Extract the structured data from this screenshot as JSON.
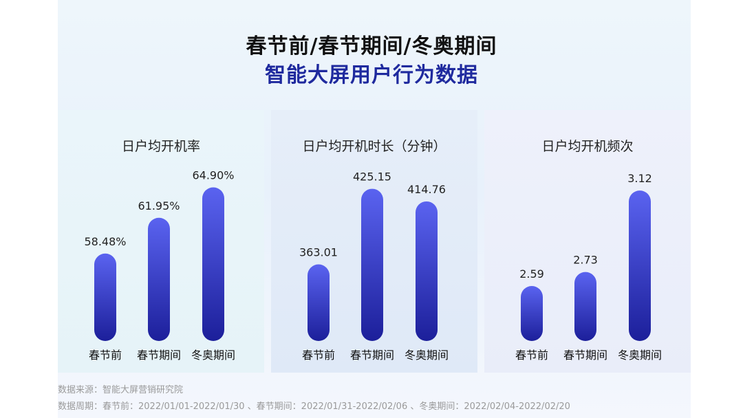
{
  "title": "春节前/春节期间/冬奥期间",
  "subtitle": "智能大屏用户行为数据",
  "colors": {
    "bar_top": "#5a63f0",
    "bar_bottom": "#1c1f9a",
    "title_accent": "#1f2a9e"
  },
  "chart_data": [
    {
      "type": "bar",
      "title": "日户均开机率",
      "categories": [
        "春节前",
        "春节期间",
        "冬奥期间"
      ],
      "values": [
        58.48,
        61.95,
        64.9
      ],
      "value_labels": [
        "58.48%",
        "61.95%",
        "64.90%"
      ],
      "unit": "%"
    },
    {
      "type": "bar",
      "title": "日户均开机时长（分钟）",
      "categories": [
        "春节前",
        "春节期间",
        "冬奥期间"
      ],
      "values": [
        363.01,
        425.15,
        414.76
      ],
      "value_labels": [
        "363.01",
        "425.15",
        "414.76"
      ],
      "unit": "分钟"
    },
    {
      "type": "bar",
      "title": "日户均开机频次",
      "categories": [
        "春节前",
        "春节期间",
        "冬奥期间"
      ],
      "values": [
        2.59,
        2.73,
        3.12
      ],
      "value_labels": [
        "2.59",
        "2.73",
        "3.12"
      ],
      "unit": ""
    }
  ],
  "footnotes": {
    "source": "数据来源：智能大屏营销研究院",
    "period": "数据周期：春节前：2022/01/01-2022/01/30 、春节期间：2022/01/31-2022/02/06 、冬奥期间：2022/02/04-2022/02/20"
  }
}
